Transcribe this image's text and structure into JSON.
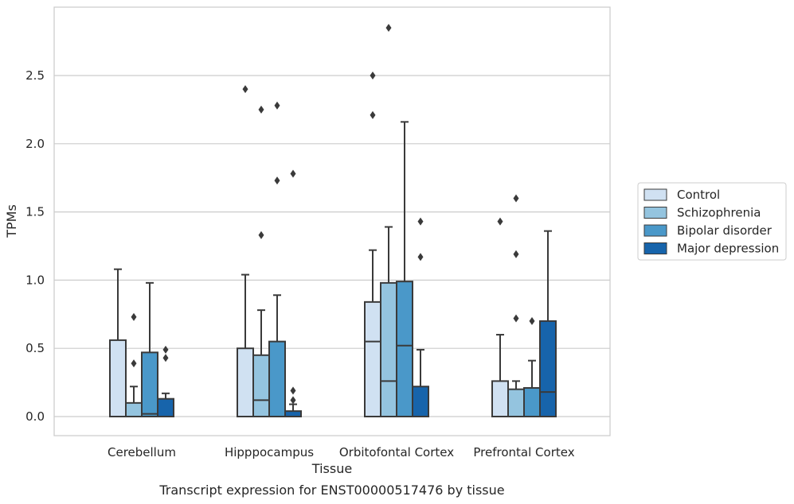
{
  "chart_data": {
    "type": "box",
    "title": "",
    "xlabel": "Tissue",
    "ylabel": "TPMs",
    "caption": "Transcript expression for ENST00000517476 by tissue",
    "ylim": [
      -0.14,
      2.98
    ],
    "yticks": [
      "0.0",
      "0.5",
      "1.0",
      "1.5",
      "2.0",
      "2.5"
    ],
    "grid": true,
    "legend_position": "right",
    "colors": {
      "Control": "#d0e1f2",
      "Schizophrenia": "#94c4df",
      "Bipolar disorder": "#4a98c9",
      "Major depression": "#1764ab",
      "edge": "#3a3a3a",
      "grid": "#cccccc"
    },
    "categories": [
      "Cerebellum",
      "Hipppocampus",
      "Orbitofontal Cortex",
      "Prefrontal Cortex"
    ],
    "series": [
      {
        "name": "Control",
        "boxes": [
          {
            "min": 0,
            "q1": 0,
            "median": 0,
            "q3": 0.56,
            "max": 1.08,
            "outliers": []
          },
          {
            "min": 0,
            "q1": 0,
            "median": 0,
            "q3": 0.5,
            "max": 1.04,
            "outliers": [
              2.4
            ]
          },
          {
            "min": 0,
            "q1": 0,
            "median": 0.55,
            "q3": 0.84,
            "max": 1.22,
            "outliers": [
              2.5,
              2.21
            ]
          },
          {
            "min": 0,
            "q1": 0,
            "median": 0,
            "q3": 0.26,
            "max": 0.6,
            "outliers": [
              1.43
            ]
          }
        ]
      },
      {
        "name": "Schizophrenia",
        "boxes": [
          {
            "min": 0,
            "q1": 0,
            "median": 0,
            "q3": 0.1,
            "max": 0.22,
            "outliers": [
              0.73,
              0.39
            ]
          },
          {
            "min": 0,
            "q1": 0,
            "median": 0.12,
            "q3": 0.45,
            "max": 0.78,
            "outliers": [
              2.25,
              1.33
            ]
          },
          {
            "min": 0,
            "q1": 0,
            "median": 0.26,
            "q3": 0.98,
            "max": 1.39,
            "outliers": [
              2.85
            ]
          },
          {
            "min": 0,
            "q1": 0,
            "median": 0,
            "q3": 0.2,
            "max": 0.26,
            "outliers": [
              1.6,
              1.19,
              0.72
            ]
          }
        ]
      },
      {
        "name": "Bipolar disorder",
        "boxes": [
          {
            "min": 0,
            "q1": 0,
            "median": 0.02,
            "q3": 0.47,
            "max": 0.98,
            "outliers": []
          },
          {
            "min": 0,
            "q1": 0,
            "median": 0,
            "q3": 0.55,
            "max": 0.89,
            "outliers": [
              2.28,
              1.73
            ]
          },
          {
            "min": 0,
            "q1": 0,
            "median": 0.52,
            "q3": 0.99,
            "max": 2.16,
            "outliers": []
          },
          {
            "min": 0,
            "q1": 0,
            "median": 0,
            "q3": 0.21,
            "max": 0.41,
            "outliers": [
              0.7
            ]
          }
        ]
      },
      {
        "name": "Major depression",
        "boxes": [
          {
            "min": 0,
            "q1": 0,
            "median": 0,
            "q3": 0.13,
            "max": 0.17,
            "outliers": [
              0.49,
              0.43
            ]
          },
          {
            "min": 0,
            "q1": 0,
            "median": 0,
            "q3": 0.04,
            "max": 0.09,
            "outliers": [
              1.78,
              0.19,
              0.12
            ]
          },
          {
            "min": 0,
            "q1": 0,
            "median": 0,
            "q3": 0.22,
            "max": 0.49,
            "outliers": [
              1.43,
              1.17
            ]
          },
          {
            "min": 0,
            "q1": 0,
            "median": 0.18,
            "q3": 0.7,
            "max": 1.36,
            "outliers": []
          }
        ]
      }
    ]
  }
}
